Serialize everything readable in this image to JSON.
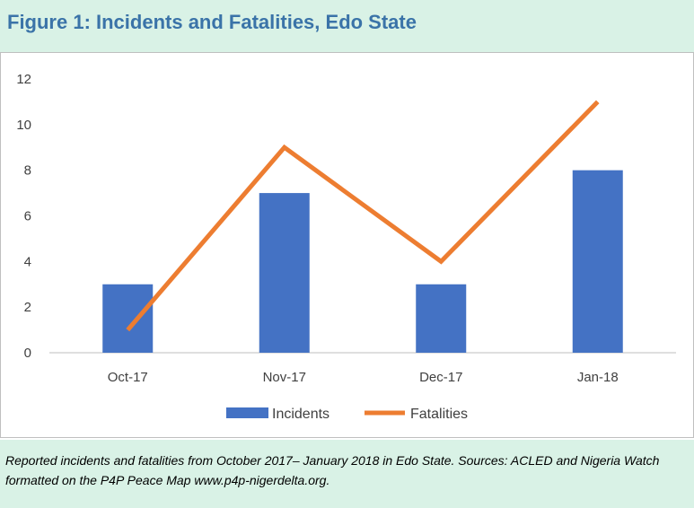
{
  "figure": {
    "title": "Figure 1: Incidents and Fatalities, Edo State",
    "caption": "Reported incidents and  fatalities from October 2017– January 2018 in Edo State. Sources: ACLED and Nigeria Watch formatted on the P4P Peace Map www.p4p-nigerdelta.org."
  },
  "chart_data": {
    "type": "bar",
    "title": "",
    "xlabel": "",
    "ylabel": "",
    "categories": [
      "Oct-17",
      "Nov-17",
      "Dec-17",
      "Jan-18"
    ],
    "series": [
      {
        "name": "Incidents",
        "type": "bar",
        "values": [
          3,
          7,
          3,
          8
        ],
        "color": "#4472c4"
      },
      {
        "name": "Fatalities",
        "type": "line",
        "values": [
          1,
          9,
          4,
          11
        ],
        "color": "#ed7d31"
      }
    ],
    "ylim": [
      0,
      12
    ],
    "yticks": [
      0,
      2,
      4,
      6,
      8,
      10,
      12
    ],
    "grid": false,
    "legend": "bottom-center"
  }
}
